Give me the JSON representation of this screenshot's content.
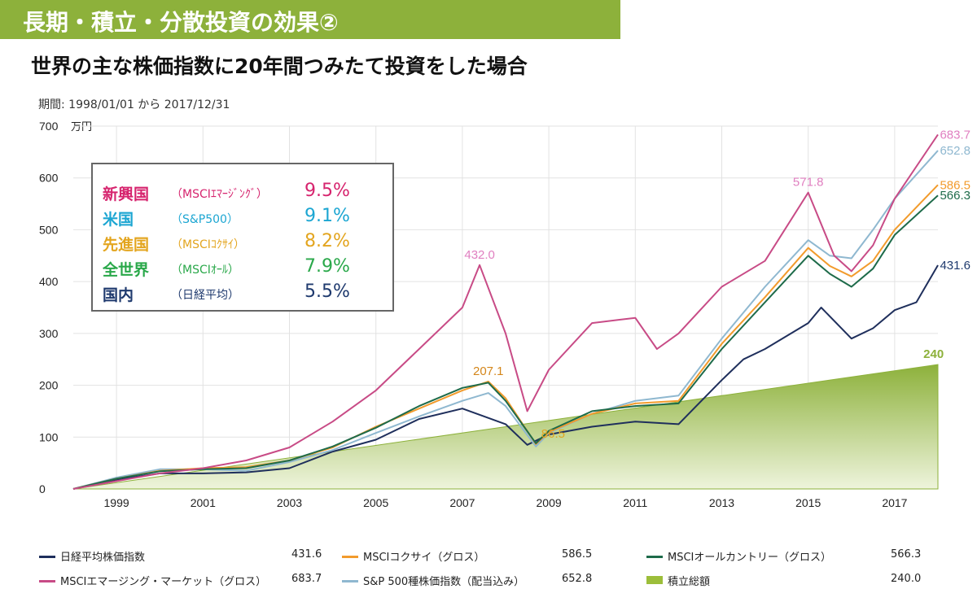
{
  "header": {
    "title": "長期・積立・分散投資の効果②"
  },
  "subtitle": "世界の主な株価指数に20年間つみたて投資をした場合",
  "period": "期間: 1998/01/01 から 2017/12/31",
  "summary_box": {
    "rows": [
      {
        "name": "新興国",
        "index": "（MSCIｴﾏｰｼﾞﾝｸﾞ）",
        "rate": "9.5%",
        "color": "#d6246e"
      },
      {
        "name": "米国",
        "index": "（S&P500）",
        "rate": "9.1%",
        "color": "#1ca6d2"
      },
      {
        "name": "先進国",
        "index": "（MSCIｺｸｻｲ）",
        "rate": "8.2%",
        "color": "#e3a51f"
      },
      {
        "name": "全世界",
        "index": "（MSCIｵｰﾙ）",
        "rate": "7.9%",
        "color": "#2aa84a"
      },
      {
        "name": "国内",
        "index": "（日経平均）",
        "rate": "5.5%",
        "color": "#1f3a6e"
      }
    ]
  },
  "chart_data": {
    "type": "line",
    "title": "世界の主な株価指数に20年間つみたて投資をした場合",
    "ylabel": "万円",
    "ylim": [
      0,
      700
    ],
    "yticks": [
      "0",
      "100",
      "200",
      "300",
      "400",
      "500",
      "600",
      "700"
    ],
    "xlim": [
      1998.0,
      2018.0
    ],
    "xticks": [
      "1999",
      "2001",
      "2003",
      "2005",
      "2007",
      "2009",
      "2011",
      "2013",
      "2015",
      "2017"
    ],
    "grid": true,
    "legend_position": "bottom",
    "annotations": [
      {
        "text": "432.0",
        "x": 2007.4,
        "y": 432.0,
        "color": "#e07fc0"
      },
      {
        "text": "207.1",
        "x": 2007.6,
        "y": 207.1,
        "color": "#d4861a"
      },
      {
        "text": "86.5",
        "x": 2009.1,
        "y": 86.5,
        "color": "#e3a51f"
      },
      {
        "text": "571.8",
        "x": 2015.0,
        "y": 571.8,
        "color": "#e07fc0"
      },
      {
        "text": "240",
        "x": 2017.9,
        "y": 240,
        "color": "#8db13b"
      },
      {
        "text": "683.7",
        "x": 2018.0,
        "y": 683.7,
        "color": "#e07fc0"
      },
      {
        "text": "652.8",
        "x": 2018.0,
        "y": 652.8,
        "color": "#8fb8d0"
      },
      {
        "text": "586.5",
        "x": 2018.0,
        "y": 586.5,
        "color": "#f29b2c"
      },
      {
        "text": "566.3",
        "x": 2018.0,
        "y": 566.3,
        "color": "#1e6b4a"
      },
      {
        "text": "431.6",
        "x": 2018.0,
        "y": 431.6,
        "color": "#1f3a6e"
      }
    ],
    "series": [
      {
        "name": "積立総額",
        "color": "#9cbe3a",
        "final": "240.0",
        "x": [
          1998.0,
          2018.0
        ],
        "y": [
          0,
          240
        ]
      },
      {
        "name": "日経平均株価指数",
        "color": "#1f2f5c",
        "final": "431.6",
        "x": [
          1998.0,
          1999.0,
          2000.0,
          2001.0,
          2002.0,
          2003.0,
          2004.0,
          2005.0,
          2006.0,
          2007.0,
          2007.5,
          2008.0,
          2008.5,
          2009.0,
          2010.0,
          2011.0,
          2012.0,
          2013.0,
          2013.5,
          2014.0,
          2015.0,
          2015.3,
          2016.0,
          2016.5,
          2017.0,
          2017.5,
          2018.0
        ],
        "y": [
          0,
          18,
          30,
          30,
          32,
          40,
          72,
          95,
          135,
          155,
          140,
          125,
          85,
          105,
          120,
          130,
          125,
          210,
          250,
          270,
          320,
          350,
          290,
          310,
          345,
          360,
          431.6
        ]
      },
      {
        "name": "MSCIコクサイ（グロス）",
        "color": "#f29b2c",
        "final": "586.5",
        "x": [
          1998.0,
          1999.0,
          2000.0,
          2001.0,
          2002.0,
          2003.0,
          2004.0,
          2005.0,
          2006.0,
          2007.0,
          2007.6,
          2008.0,
          2008.7,
          2009.0,
          2010.0,
          2011.0,
          2012.0,
          2013.0,
          2014.0,
          2015.0,
          2015.5,
          2016.0,
          2016.5,
          2017.0,
          2018.0
        ],
        "y": [
          0,
          20,
          35,
          40,
          42,
          55,
          80,
          120,
          155,
          190,
          207.1,
          175,
          86.5,
          110,
          145,
          165,
          170,
          280,
          370,
          465,
          430,
          410,
          440,
          500,
          586.5
        ]
      },
      {
        "name": "MSCIオールカントリー（グロス）",
        "color": "#1e6b4a",
        "final": "566.3",
        "x": [
          1998.0,
          1999.0,
          2000.0,
          2001.0,
          2002.0,
          2003.0,
          2004.0,
          2005.0,
          2006.0,
          2007.0,
          2007.6,
          2008.0,
          2008.7,
          2009.0,
          2010.0,
          2011.0,
          2012.0,
          2013.0,
          2014.0,
          2015.0,
          2015.5,
          2016.0,
          2016.5,
          2017.0,
          2018.0
        ],
        "y": [
          0,
          20,
          34,
          38,
          40,
          55,
          82,
          118,
          160,
          195,
          205,
          170,
          88,
          112,
          150,
          160,
          165,
          270,
          360,
          450,
          415,
          390,
          425,
          490,
          566.3
        ]
      },
      {
        "name": "MSCIエマージング・マーケット（グロス）",
        "color": "#c84b86",
        "final": "683.7",
        "x": [
          1998.0,
          1999.0,
          2000.0,
          2001.0,
          2002.0,
          2003.0,
          2004.0,
          2005.0,
          2006.0,
          2007.0,
          2007.4,
          2008.0,
          2008.5,
          2009.0,
          2010.0,
          2011.0,
          2011.5,
          2012.0,
          2013.0,
          2014.0,
          2015.0,
          2015.6,
          2016.0,
          2016.5,
          2017.0,
          2018.0
        ],
        "y": [
          0,
          15,
          30,
          40,
          55,
          80,
          130,
          190,
          270,
          350,
          432.0,
          300,
          150,
          230,
          320,
          330,
          270,
          300,
          390,
          440,
          571.8,
          450,
          420,
          470,
          560,
          683.7
        ]
      },
      {
        "name": "S&P 500種株価指数（配当込み）",
        "color": "#8fb8d0",
        "final": "652.8",
        "x": [
          1998.0,
          1999.0,
          2000.0,
          2001.0,
          2002.0,
          2003.0,
          2004.0,
          2005.0,
          2006.0,
          2007.0,
          2007.6,
          2008.0,
          2008.7,
          2009.0,
          2010.0,
          2011.0,
          2012.0,
          2013.0,
          2014.0,
          2015.0,
          2015.5,
          2016.0,
          2016.5,
          2017.0,
          2018.0
        ],
        "y": [
          0,
          22,
          38,
          38,
          35,
          52,
          75,
          108,
          140,
          170,
          185,
          160,
          82,
          108,
          145,
          170,
          180,
          290,
          390,
          480,
          450,
          445,
          500,
          560,
          652.8
        ]
      }
    ]
  },
  "legend_bottom": {
    "items": [
      {
        "label": "日経平均株価指数",
        "value": "431.6",
        "color": "#1f2f5c",
        "col": 0,
        "row": 0
      },
      {
        "label": "MSCIコクサイ（グロス）",
        "value": "586.5",
        "color": "#f29b2c",
        "col": 1,
        "row": 0
      },
      {
        "label": "MSCIオールカントリー（グロス）",
        "value": "566.3",
        "color": "#1e6b4a",
        "col": 2,
        "row": 0
      },
      {
        "label": "MSCIエマージング・マーケット（グロス）",
        "value": "683.7",
        "color": "#c84b86",
        "col": 0,
        "row": 1
      },
      {
        "label": "S&P 500種株価指数（配当込み）",
        "value": "652.8",
        "color": "#8fb8d0",
        "col": 1,
        "row": 1
      },
      {
        "label": "積立総額",
        "value": "240.0",
        "color": "#9cbe3a",
        "col": 2,
        "row": 1,
        "fill": true
      }
    ]
  }
}
